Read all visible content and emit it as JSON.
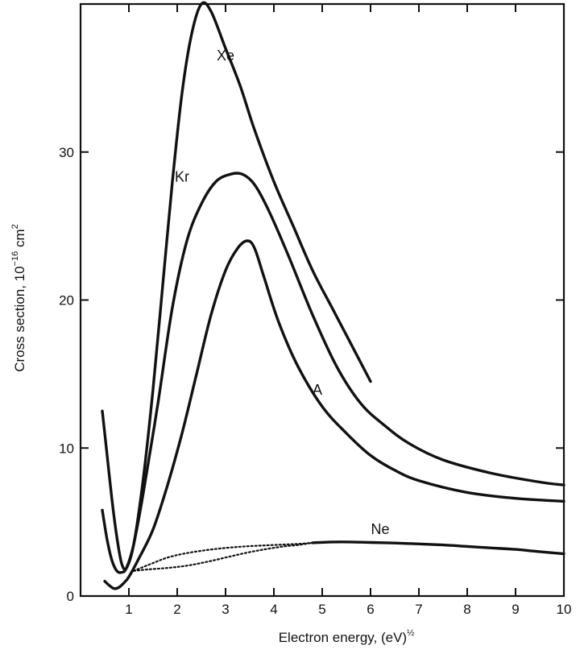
{
  "chart_data": {
    "type": "line",
    "xlabel": "Electron energy, (eV)",
    "xlabel_exponent": "½",
    "ylabel": "Cross section, 10",
    "ylabel_exponent": "−16",
    "ylabel_unit": "cm",
    "ylabel_unit_exponent": "2",
    "xlim": [
      0,
      10
    ],
    "ylim": [
      0,
      40
    ],
    "x_ticks": [
      1,
      2,
      3,
      4,
      5,
      6,
      7,
      8,
      9,
      10
    ],
    "y_ticks": [
      0,
      10,
      20,
      30
    ],
    "grid": false,
    "series": [
      {
        "name": "Xe",
        "label": "Xe",
        "style": "solid",
        "x": [
          0.45,
          0.55,
          0.65,
          0.75,
          0.85,
          0.95,
          1.1,
          1.3,
          1.5,
          1.7,
          1.9,
          2.1,
          2.3,
          2.5,
          2.7,
          3.0,
          3.3,
          3.6,
          4.0,
          4.4,
          4.8,
          5.2,
          5.6,
          6.0
        ],
        "y": [
          12.5,
          9.5,
          6.5,
          4.0,
          2.2,
          1.9,
          3.5,
          8.0,
          14.0,
          21.0,
          28.0,
          34.0,
          38.0,
          40.0,
          39.5,
          37.0,
          34.5,
          31.5,
          28.0,
          25.0,
          22.0,
          19.5,
          17.0,
          14.5
        ]
      },
      {
        "name": "Kr",
        "label": "Kr",
        "style": "solid",
        "x": [
          0.45,
          0.55,
          0.65,
          0.75,
          0.85,
          0.95,
          1.1,
          1.3,
          1.6,
          1.9,
          2.2,
          2.5,
          2.8,
          3.1,
          3.35,
          3.6,
          3.9,
          4.3,
          4.8,
          5.3,
          5.8,
          6.3,
          6.8,
          7.5,
          8.5,
          9.5,
          10.0
        ],
        "y": [
          5.8,
          3.8,
          2.4,
          1.7,
          1.6,
          1.9,
          3.5,
          7.0,
          13.0,
          19.5,
          24.0,
          26.5,
          28.0,
          28.5,
          28.5,
          27.8,
          26.0,
          23.0,
          19.0,
          15.5,
          13.0,
          11.5,
          10.3,
          9.2,
          8.3,
          7.7,
          7.5
        ]
      },
      {
        "name": "A",
        "label": "A",
        "style": "solid",
        "x": [
          0.5,
          0.6,
          0.7,
          0.8,
          0.9,
          1.0,
          1.2,
          1.5,
          1.8,
          2.1,
          2.4,
          2.7,
          3.0,
          3.25,
          3.45,
          3.6,
          3.8,
          4.1,
          4.5,
          5.0,
          5.5,
          6.0,
          6.5,
          7.0,
          8.0,
          9.0,
          10.0
        ],
        "y": [
          1.0,
          0.7,
          0.5,
          0.6,
          0.9,
          1.3,
          2.5,
          4.5,
          7.5,
          11.0,
          15.0,
          19.0,
          22.0,
          23.5,
          24.0,
          23.5,
          21.5,
          18.5,
          15.5,
          12.8,
          11.0,
          9.5,
          8.5,
          7.8,
          7.0,
          6.6,
          6.4
        ]
      },
      {
        "name": "Ne (solid)",
        "label": "Ne",
        "style": "solid",
        "x": [
          4.8,
          5.2,
          5.6,
          6.0,
          6.5,
          7.0,
          7.5,
          8.0,
          8.5,
          9.0,
          9.5,
          10.0
        ],
        "y": [
          3.6,
          3.65,
          3.65,
          3.62,
          3.58,
          3.52,
          3.45,
          3.35,
          3.25,
          3.15,
          3.0,
          2.85
        ]
      },
      {
        "name": "Ne (dotted, upper)",
        "label": "",
        "style": "dotted",
        "x": [
          1.1,
          1.4,
          1.8,
          2.2,
          2.6,
          3.0,
          3.4,
          3.8,
          4.2,
          4.5,
          4.8
        ],
        "y": [
          1.7,
          2.1,
          2.6,
          2.9,
          3.1,
          3.25,
          3.35,
          3.42,
          3.48,
          3.52,
          3.6
        ]
      },
      {
        "name": "Ne (dotted, lower)",
        "label": "",
        "style": "dotted",
        "x": [
          1.1,
          1.4,
          1.8,
          2.2,
          2.6,
          3.0,
          3.4,
          3.8,
          4.2,
          4.5,
          4.8
        ],
        "y": [
          1.7,
          1.8,
          1.9,
          2.05,
          2.3,
          2.6,
          2.9,
          3.15,
          3.35,
          3.45,
          3.6
        ]
      }
    ]
  }
}
